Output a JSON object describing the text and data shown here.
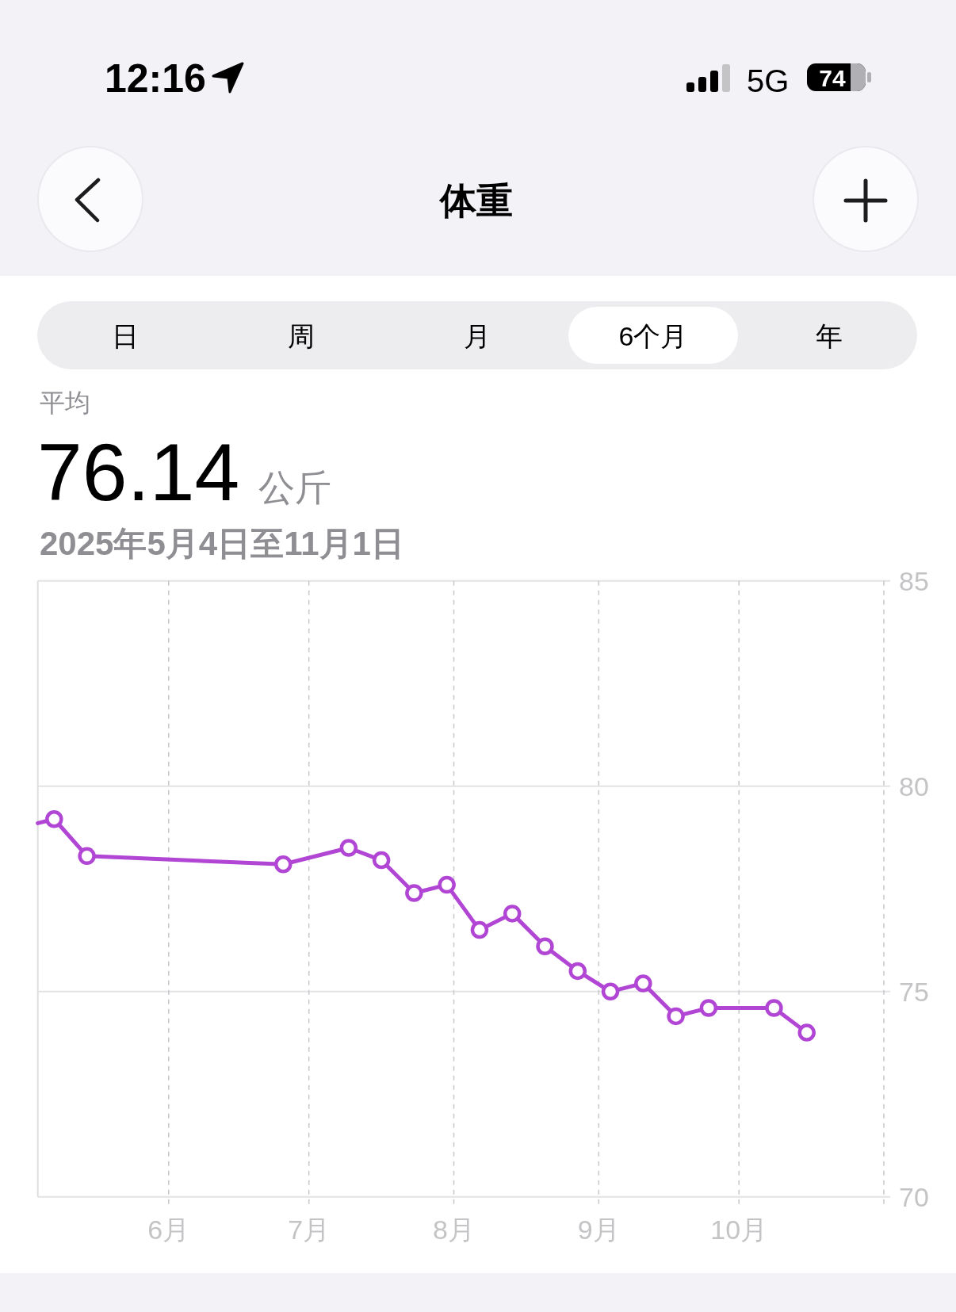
{
  "chart_data": {
    "type": "line",
    "title": "体重",
    "subtitle": "2025年5月4日至11月1日",
    "annotations": [
      "12:16",
      "5G",
      "74",
      "日",
      "周",
      "月",
      "6个月",
      "年",
      "平均",
      "76.14",
      "公斤"
    ],
    "x": [
      "2025-05-07T12:00",
      "2025-05-14T12:00",
      "2025-06-25T12:00",
      "2025-07-09T12:00",
      "2025-07-16T12:00",
      "2025-07-23T12:00",
      "2025-07-30T12:00",
      "2025-08-06T12:00",
      "2025-08-13T12:00",
      "2025-08-20T12:00",
      "2025-08-27T12:00",
      "2025-09-03T12:00",
      "2025-09-10T12:00",
      "2025-09-17T12:00",
      "2025-09-24T12:00",
      "2025-10-08T12:00",
      "2025-10-15T12:00"
    ],
    "series": [
      {
        "color": "#b146d5",
        "values": [
          79.2,
          78.3,
          78.1,
          78.5,
          78.2,
          77.4,
          77.6,
          76.5,
          76.9,
          76.1,
          75.5,
          75.0,
          75.2,
          74.4,
          74.6,
          74.6,
          74.0
        ]
      },
      {
        "type": "line",
        "color": "#b146d5",
        "marker": "none",
        "x": [
          "2025-05-04",
          "2025-05-07T12:00"
        ],
        "values": [
          79.1,
          79.2
        ]
      }
    ],
    "xlim": [
      "2025-05-04",
      "2025-11-01"
    ],
    "xticks": [
      {
        "value": "2025-06-01",
        "label": "6月"
      },
      {
        "value": "2025-07-01",
        "label": "7月"
      },
      {
        "value": "2025-08-01",
        "label": "8月"
      },
      {
        "value": "2025-09-01",
        "label": "9月"
      },
      {
        "value": "2025-10-01",
        "label": "10月"
      },
      {
        "value": "2025-11-01",
        "label": null
      }
    ],
    "ylim": [
      70,
      85
    ],
    "yticks": [
      70,
      75,
      80,
      85
    ],
    "grid": true,
    "marker": "circle",
    "line_style": "solid"
  }
}
